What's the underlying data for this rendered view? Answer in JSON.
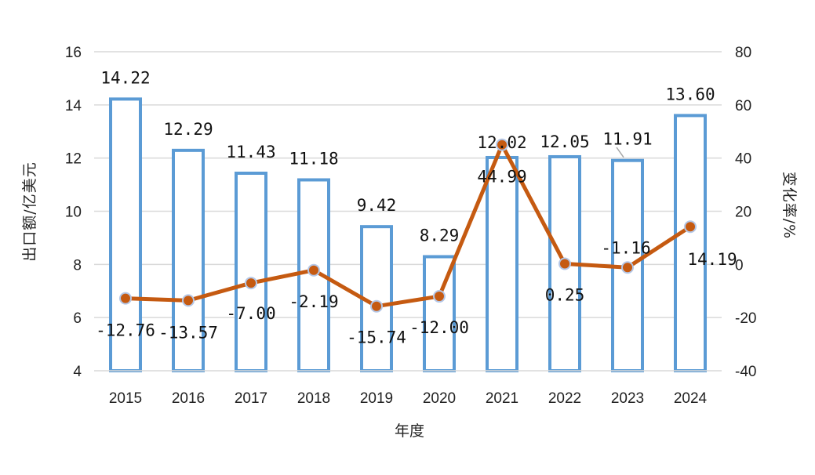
{
  "chart_data": {
    "type": "bar",
    "title": "",
    "xlabel": "年度",
    "ylabel": "出口额/亿美元",
    "y2label": "变化率/%",
    "categories": [
      "2015",
      "2016",
      "2017",
      "2018",
      "2019",
      "2020",
      "2021",
      "2022",
      "2023",
      "2024"
    ],
    "ylim": [
      4,
      16
    ],
    "yticks": [
      4,
      6,
      8,
      10,
      12,
      14,
      16
    ],
    "y2lim": [
      -40,
      80
    ],
    "y2ticks": [
      -40,
      -20,
      0,
      20,
      40,
      60,
      80
    ],
    "grid": true,
    "series": [
      {
        "name": "出口额",
        "type": "bar",
        "axis": "left",
        "values": [
          14.22,
          12.29,
          11.43,
          11.18,
          9.42,
          8.29,
          12.02,
          12.05,
          11.91,
          13.6
        ],
        "labels": [
          "14.22",
          "12.29",
          "11.43",
          "11.18",
          "9.42",
          "8.29",
          "12.02",
          "12.05",
          "11.91",
          "13.60"
        ],
        "color": "#5b9bd5"
      },
      {
        "name": "变化率",
        "type": "line",
        "axis": "right",
        "values": [
          -12.76,
          -13.57,
          -7.0,
          -2.19,
          -15.74,
          -12.0,
          44.99,
          0.25,
          -1.16,
          14.19
        ],
        "labels": [
          "-12.76",
          "-13.57",
          "-7.00",
          "-2.19",
          "-15.74",
          "-12.00",
          "44.99",
          "0.25",
          "-1.16",
          "14.19"
        ],
        "color": "#c55a11",
        "marker_edge": "#b4c7e7"
      }
    ]
  }
}
